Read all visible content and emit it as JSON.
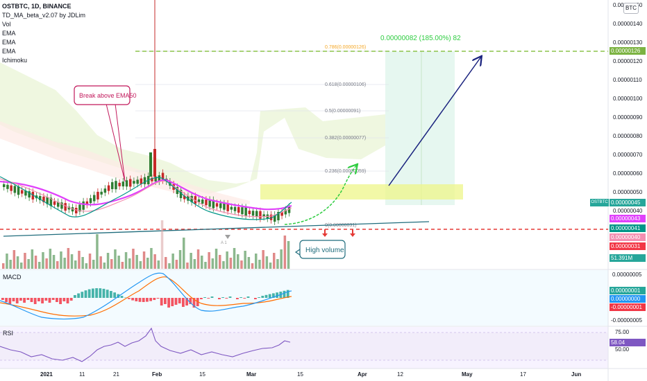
{
  "header": {
    "symbol": "OSTBTC, 1D, BINANCE",
    "indicators": [
      "TD_MA_beta_v2.07 by JDLim",
      "Vol",
      "EMA",
      "EMA",
      "EMA",
      "Ichimoku"
    ]
  },
  "currency_button": "BTC",
  "annotations": {
    "callout_ema": "Break above EMA50",
    "callout_volume": "High volume",
    "target_label": "0.00000082 (185.00%) 82",
    "count_down": "A 1"
  },
  "fib_levels": [
    {
      "label": "0.786(0.00000126)",
      "value": 1.26e-06
    },
    {
      "label": "0.618(0.00000106)",
      "value": 1.06e-06
    },
    {
      "label": "0.5(0.00000091)",
      "value": 9.1e-07
    },
    {
      "label": "0.382(0.00000077)",
      "value": 7.7e-07
    },
    {
      "label": "0.236(0.00000059)",
      "value": 5.9e-07
    },
    {
      "label": "0(0.00000031)",
      "value": 3.1e-07
    }
  ],
  "price_axis": {
    "ticks": [
      "0.00000150",
      "0.00000140",
      "0.00000130",
      "0.00000120",
      "0.00000110",
      "0.00000100",
      "0.00000090",
      "0.00000080",
      "0.00000070",
      "0.00000060",
      "0.00000050",
      "0.00000040"
    ],
    "tags": [
      {
        "text": "0.00000126",
        "color": "#7cb342"
      },
      {
        "text": "0.00000045",
        "color": "#26a69a"
      },
      {
        "text": "0.00000043",
        "color": "#e040fb"
      },
      {
        "text": "0.00000041",
        "color": "#009688"
      },
      {
        "text": "0.00000040",
        "color": "#f48fb1"
      },
      {
        "text": "0.00000031",
        "color": "#f23645"
      },
      {
        "text": "51.391M",
        "color": "#26a69a"
      }
    ],
    "symbol_tag": "OSTBTC"
  },
  "macd": {
    "label": "MACD",
    "ticks": [
      "0.00000005",
      "-0.00000005"
    ],
    "tags": [
      {
        "text": "0.00000001",
        "color": "#26a69a"
      },
      {
        "text": "0.00000000",
        "color": "#2196f3"
      },
      {
        "text": "-0.00000001",
        "color": "#f23645"
      }
    ]
  },
  "rsi": {
    "label": "RSI",
    "ticks": [
      "75.00",
      "50.00"
    ],
    "tag": {
      "text": "58.04",
      "color": "#7e57c2"
    }
  },
  "time_axis": [
    "2021",
    "11",
    "21",
    "Feb",
    "15",
    "Mar",
    "15",
    "Apr",
    "12",
    "May",
    "17",
    "Jun"
  ],
  "chart_data": {
    "type": "candlestick",
    "symbol": "OSTBTC",
    "timeframe": "1D",
    "exchange": "BINANCE",
    "y_range": [
      3.1e-07,
      1.5e-06
    ],
    "support_level": 3.1e-07,
    "target_level": 1.26e-06,
    "target_gain": "185.00%",
    "current_price": 4.5e-07,
    "ema_values": [
      4.3e-07,
      4.1e-07,
      4e-07
    ],
    "rsi_last": 58.04,
    "volume_last": "51.391M"
  }
}
